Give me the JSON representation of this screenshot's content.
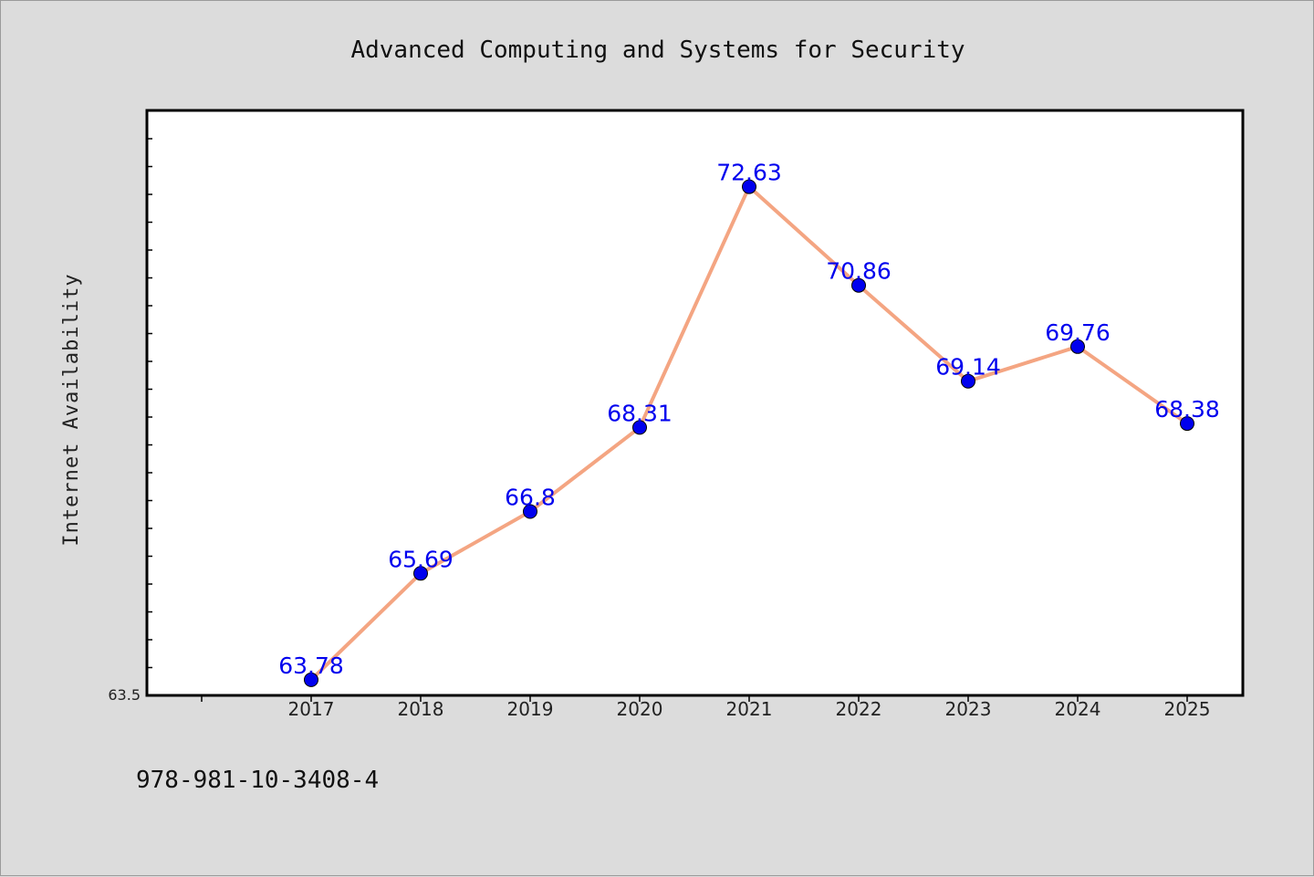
{
  "chart_data": {
    "type": "line",
    "title": "Advanced Computing and Systems for Security",
    "xlabel": "",
    "ylabel": "Internet Availability",
    "categories": [
      "2017",
      "2018",
      "2019",
      "2020",
      "2021",
      "2022",
      "2023",
      "2024",
      "2025"
    ],
    "series": [
      {
        "values": [
          63.78,
          65.69,
          66.8,
          68.31,
          72.63,
          70.86,
          69.14,
          69.76,
          68.38
        ],
        "data_labels": [
          "63.78",
          "65.69",
          "66.8",
          "68.31",
          "72.63",
          "70.86",
          "69.14",
          "69.76",
          "68.38"
        ],
        "line_color": "#f4a582",
        "marker_color": "#0000ee"
      }
    ],
    "ylim": [
      63.5,
      74.0
    ],
    "ytick_labels": [
      "63.5"
    ],
    "grid": false,
    "legend": false,
    "label_color": "#0000ee"
  },
  "footer": {
    "isbn": "978-981-10-3408-4"
  }
}
